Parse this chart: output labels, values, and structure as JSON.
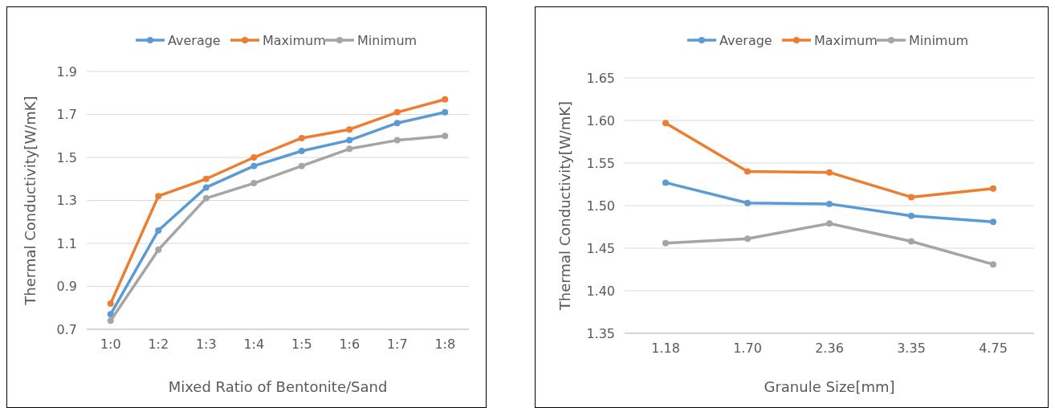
{
  "chart_data": [
    {
      "type": "line",
      "xlabel": "Mixed Ratio of Bentonite/Sand",
      "ylabel": "Thermal Conductivity[W/mK]",
      "categories": [
        "1:0",
        "1:2",
        "1:3",
        "1:4",
        "1:5",
        "1:6",
        "1:7",
        "1:8"
      ],
      "ylim": [
        0.7,
        1.9
      ],
      "yticks": [
        0.7,
        0.9,
        1.1,
        1.3,
        1.5,
        1.7,
        1.9
      ],
      "grid": "y",
      "legend": "top",
      "marker": "circle",
      "series": [
        {
          "name": "Average",
          "color": "#5b9bd5",
          "values": [
            0.77,
            1.16,
            1.36,
            1.46,
            1.53,
            1.58,
            1.66,
            1.71
          ]
        },
        {
          "name": "Maximum",
          "color": "#ed7d31",
          "values": [
            0.82,
            1.32,
            1.4,
            1.5,
            1.59,
            1.63,
            1.71,
            1.77
          ]
        },
        {
          "name": "Minimum",
          "color": "#a5a5a5",
          "values": [
            0.74,
            1.07,
            1.31,
            1.38,
            1.46,
            1.54,
            1.58,
            1.6
          ]
        }
      ]
    },
    {
      "type": "line",
      "xlabel": "Granule Size[mm]",
      "ylabel": "Thermal Conductivity[W/mK]",
      "categories": [
        "1.18",
        "1.70",
        "2.36",
        "3.35",
        "4.75"
      ],
      "ylim": [
        1.35,
        1.65
      ],
      "yticks": [
        {
          "value": 1.35,
          "label": "1.35"
        },
        {
          "value": 1.4,
          "label": "1.40"
        },
        {
          "value": 1.45,
          "label": "1.45"
        },
        {
          "value": 1.5,
          "label": "1.50"
        },
        {
          "value": 1.55,
          "label": "1.55"
        },
        {
          "value": 1.6,
          "label": "1.60"
        },
        {
          "value": 1.65,
          "label": "1.65"
        }
      ],
      "grid": "y",
      "legend": "top",
      "marker": "circle",
      "series": [
        {
          "name": "Average",
          "color": "#5b9bd5",
          "values": [
            1.527,
            1.503,
            1.502,
            1.488,
            1.481
          ]
        },
        {
          "name": "Maximum",
          "color": "#ed7d31",
          "values": [
            1.597,
            1.54,
            1.539,
            1.51,
            1.52
          ]
        },
        {
          "name": "Minimum",
          "color": "#a5a5a5",
          "values": [
            1.456,
            1.461,
            1.479,
            1.458,
            1.431
          ]
        }
      ]
    }
  ]
}
